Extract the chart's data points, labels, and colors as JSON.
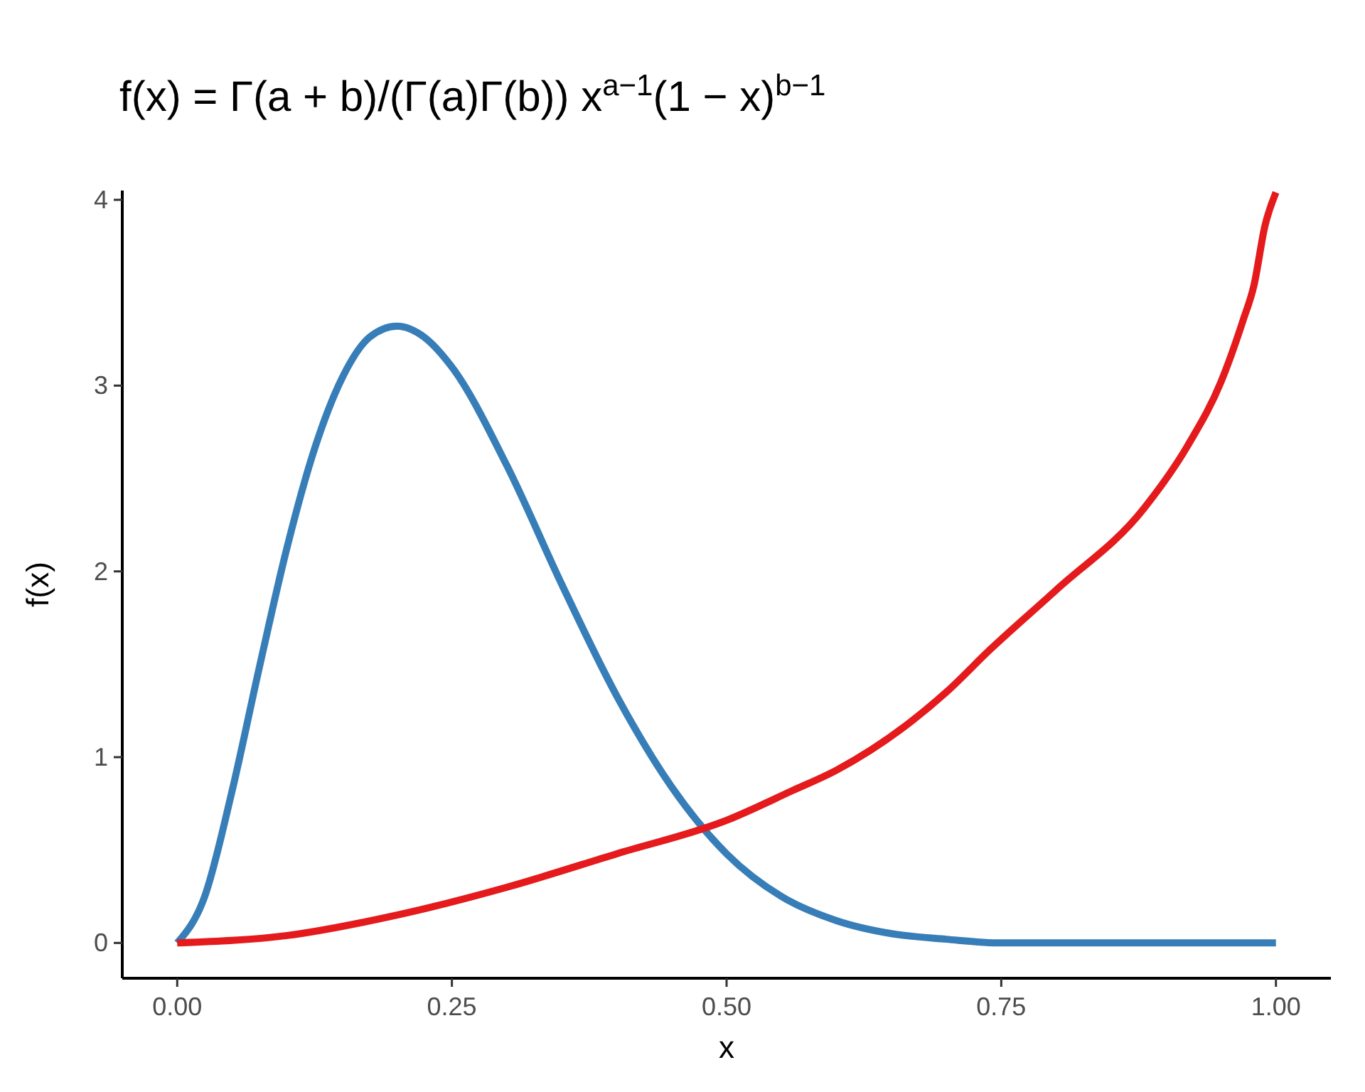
{
  "chart_data": {
    "type": "line",
    "title": "f(x) = Γ(a + b)/(Γ(a)Γ(b)) x$^{a−1}$(1 − x)$^{b−1}$",
    "xlabel": "x",
    "ylabel": "f(x)",
    "xlim": [
      -0.05,
      1.05
    ],
    "ylim": [
      -0.19,
      4.05
    ],
    "xticks": [
      {
        "value": 0,
        "label": "0.00"
      },
      {
        "value": 0.25,
        "label": "0.25"
      },
      {
        "value": 0.5,
        "label": "0.50"
      },
      {
        "value": 0.75,
        "label": "0.75"
      },
      {
        "value": 1,
        "label": "1.00"
      }
    ],
    "yticks": [
      0,
      1,
      2,
      3,
      4
    ],
    "grid": false,
    "series": [
      {
        "color": "#377eb8",
        "x": [
          0,
          0.025,
          0.05,
          0.075,
          0.1,
          0.125,
          0.15,
          0.175,
          0.2,
          0.225,
          0.25,
          0.3,
          0.35,
          0.4,
          0.45,
          0.5,
          0.55,
          0.6,
          0.65,
          0.7,
          0.75,
          0.8,
          0.9,
          1
        ],
        "values": [
          0,
          0.25,
          0.82,
          1.49,
          2.13,
          2.66,
          3.04,
          3.26,
          3.32,
          3.26,
          3.1,
          2.57,
          1.93,
          1.33,
          0.84,
          0.48,
          0.25,
          0.12,
          0.05,
          0.02,
          0,
          0,
          0,
          0
        ]
      },
      {
        "color": "#e41a1c",
        "x": [
          0,
          0.1,
          0.2,
          0.3,
          0.4,
          0.5,
          0.56,
          0.6,
          0.7,
          0.74,
          0.8,
          0.88,
          0.92,
          0.95,
          0.97,
          0.98,
          0.99,
          1
        ],
        "values": [
          0,
          0.04,
          0.15,
          0.3,
          0.48,
          0.66,
          0.82,
          0.93,
          1.35,
          1.58,
          1.9,
          2.34,
          2.68,
          3.02,
          3.35,
          3.54,
          3.86,
          4.04
        ]
      }
    ]
  }
}
